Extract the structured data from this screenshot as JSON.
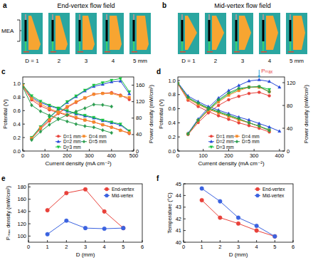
{
  "diagrams": [
    {
      "label": "a",
      "title": "End-vertex flow field",
      "kind": "end-vertex",
      "mea_label": "MEA",
      "items": [
        {
          "label": "D = 1",
          "d": 1
        },
        {
          "label": "2",
          "d": 2
        },
        {
          "label": "3",
          "d": 3
        },
        {
          "label": "4",
          "d": 4
        },
        {
          "label": "5 mm",
          "d": 5
        }
      ]
    },
    {
      "label": "b",
      "title": "Mid-vertex flow field",
      "kind": "mid-vertex",
      "items": [
        {
          "label": "D = 1",
          "d": 1
        },
        {
          "label": "2",
          "d": 2
        },
        {
          "label": "3",
          "d": 3
        },
        {
          "label": "4",
          "d": 4
        },
        {
          "label": "5 mm",
          "d": 5
        }
      ]
    }
  ],
  "chart_data": [
    {
      "type": "line",
      "title": "c",
      "x_label": "Current density (mA cm⁻²)",
      "y_label": "Potential (V)",
      "y2_label": "Power density (mW/cm²)",
      "xlim": [
        0,
        500
      ],
      "xticks": [
        0,
        100,
        200,
        300,
        400,
        500
      ],
      "ylim": [
        0,
        1.1
      ],
      "yticks": [
        {
          "value": 0,
          "label": "0.0"
        },
        0.2,
        0.4,
        0.6,
        0.8,
        {
          "value": 1,
          "label": "1.0"
        }
      ],
      "y2lim": [
        0,
        180
      ],
      "y2ticks": [
        0,
        40,
        80,
        120,
        160
      ],
      "legend": "lower center",
      "x": [
        0,
        40,
        80,
        120,
        160,
        200,
        240,
        280,
        320,
        360,
        400,
        440,
        480
      ],
      "series": [
        {
          "name": "D=1 mm",
          "color": "#e8413a",
          "marker": "circle",
          "values": [
            0.96,
            0.76,
            0.67,
            0.61,
            0.57,
            0.53,
            0.49,
            0.46,
            0.43,
            0.39,
            0.355,
            0.31,
            0.26
          ],
          "power": [
            null,
            30,
            54,
            73,
            91,
            106,
            118,
            129,
            138,
            140,
            142,
            136,
            125
          ]
        },
        {
          "name": "D=2 mm",
          "color": "#2447d8",
          "marker": "triangle",
          "values": [
            0.97,
            0.8,
            0.72,
            0.67,
            0.63,
            0.59,
            0.55,
            0.52,
            0.49,
            0.45,
            0.42,
            0.386,
            0.29
          ],
          "power": [
            null,
            32,
            58,
            80,
            101,
            118,
            132,
            146,
            157,
            162,
            168,
            170,
            139
          ]
        },
        {
          "name": "D=3 mm",
          "color": "#17c23f",
          "marker": "triangle-down",
          "values": [
            0.98,
            0.82,
            0.74,
            0.68,
            0.64,
            0.6,
            0.56,
            0.53,
            0.5,
            0.46,
            0.43,
            0.4,
            0.3
          ],
          "power": [
            null,
            33,
            59,
            82,
            102,
            120,
            134,
            148,
            160,
            166,
            172,
            176,
            144
          ]
        },
        {
          "name": "D=4 mm",
          "color": "#f5892a",
          "marker": "square",
          "values": [
            0.97,
            0.78,
            0.7,
            0.63,
            0.58,
            0.54,
            0.5,
            0.46,
            0.43,
            0.39,
            0.35,
            0.305,
            0.27
          ],
          "power": [
            null,
            31,
            56,
            76,
            93,
            108,
            120,
            129,
            138,
            140,
            140,
            134,
            130
          ]
        },
        {
          "name": "D=5 mm",
          "color": "#2a9d4f",
          "marker": "diamond",
          "values": [
            0.95,
            0.68,
            0.59,
            0.53,
            0.48,
            0.44,
            0.4,
            0.37,
            0.353,
            0.31,
            0.27,
            null,
            null
          ],
          "power": [
            null,
            27,
            47,
            64,
            77,
            88,
            96,
            104,
            113,
            112,
            108,
            null,
            null
          ]
        }
      ]
    },
    {
      "type": "line",
      "title": "d",
      "x_label": "Current density (mA cm⁻²)",
      "y_label": "Potential (V)",
      "y2_label": "Power density (mW/cm²)",
      "xlim": [
        0,
        420
      ],
      "xticks": [
        0,
        100,
        200,
        300,
        400
      ],
      "ylim": [
        0,
        1.05
      ],
      "yticks": [
        {
          "value": 0,
          "label": "0.0"
        },
        0.2,
        0.4,
        0.6,
        0.8,
        {
          "value": 1,
          "label": "1.0"
        }
      ],
      "y2lim": [
        0,
        130
      ],
      "y2ticks": [
        0,
        40,
        80,
        120
      ],
      "legend": "lower center",
      "x": [
        0,
        40,
        80,
        120,
        160,
        200,
        240,
        280,
        320,
        360,
        400
      ],
      "annotations": [
        {
          "text": "Pₘₐₓ",
          "x": 320,
          "y": 125,
          "axis": "y2"
        }
      ],
      "series": [
        {
          "name": "D=1 mm",
          "color": "#e8413a",
          "marker": "circle",
          "values": [
            0.95,
            0.72,
            0.63,
            0.56,
            0.5,
            0.45,
            0.4,
            0.36,
            0.322,
            0.27,
            null
          ],
          "power": [
            null,
            29,
            50,
            67,
            80,
            90,
            96,
            101,
            103,
            97,
            null
          ]
        },
        {
          "name": "D=2 mm",
          "color": "#2447d8",
          "marker": "triangle",
          "values": [
            0.97,
            0.78,
            0.7,
            0.63,
            0.58,
            0.53,
            0.48,
            0.44,
            0.39,
            0.34,
            0.28
          ],
          "power": [
            null,
            31,
            56,
            76,
            93,
            106,
            115,
            123,
            125,
            122,
            112
          ]
        },
        {
          "name": "D=3 mm",
          "color": "#17c23f",
          "marker": "triangle-down",
          "values": [
            0.96,
            0.75,
            0.67,
            0.6,
            0.55,
            0.5,
            0.45,
            0.4,
            0.353,
            0.3,
            null
          ],
          "power": [
            null,
            30,
            54,
            72,
            88,
            100,
            108,
            112,
            113,
            108,
            null
          ]
        },
        {
          "name": "D=4 mm",
          "color": "#f5892a",
          "marker": "square",
          "values": [
            0.96,
            0.74,
            0.66,
            0.59,
            0.54,
            0.49,
            0.44,
            0.4,
            0.35,
            0.29,
            null
          ],
          "power": [
            null,
            30,
            53,
            71,
            86,
            98,
            106,
            112,
            112,
            104,
            null
          ]
        },
        {
          "name": "D=5 mm",
          "color": "#2a9d4f",
          "marker": "diamond",
          "values": [
            0.96,
            0.76,
            0.68,
            0.61,
            0.56,
            0.51,
            0.46,
            0.4,
            0.353,
            0.29,
            null
          ],
          "power": [
            null,
            30,
            54,
            73,
            90,
            102,
            110,
            112,
            113,
            104,
            null
          ]
        }
      ]
    },
    {
      "type": "line",
      "title": "e",
      "x_label": "D (mm)",
      "y_label": "Pₘₐₓ density (mW/cm²)",
      "xlim": [
        0,
        6
      ],
      "xticks": [
        0,
        1,
        2,
        3,
        4,
        5,
        6
      ],
      "ylim": [
        90,
        185
      ],
      "yticks": [
        100,
        120,
        140,
        160,
        180
      ],
      "legend": "upper right",
      "x": [
        1,
        2,
        3,
        4,
        5
      ],
      "series": [
        {
          "name": "End-vertex",
          "color": "#e8413a",
          "marker": "circle",
          "values": [
            142,
            170,
            176,
            140,
            113
          ]
        },
        {
          "name": "Mid-vertex",
          "color": "#3a62e0",
          "marker": "circle",
          "values": [
            103,
            125,
            113,
            112,
            113
          ]
        }
      ]
    },
    {
      "type": "line",
      "title": "f",
      "x_label": "D (mm)",
      "y_label": "Temperature (°C)",
      "xlim": [
        0,
        6
      ],
      "xticks": [
        0,
        1,
        2,
        3,
        4,
        5,
        6
      ],
      "ylim": [
        40,
        45
      ],
      "yticks": [
        40,
        41,
        42,
        43,
        44,
        45
      ],
      "legend": "upper right",
      "x": [
        1,
        2,
        3,
        4,
        5
      ],
      "series": [
        {
          "name": "End-vertex",
          "color": "#e8413a",
          "marker": "circle",
          "values": [
            43.6,
            42.1,
            41.6,
            41.0,
            40.5
          ]
        },
        {
          "name": "Mid-vertex",
          "color": "#3a62e0",
          "marker": "circle",
          "values": [
            44.6,
            43.5,
            42.1,
            41.4,
            40.5
          ]
        }
      ]
    }
  ]
}
